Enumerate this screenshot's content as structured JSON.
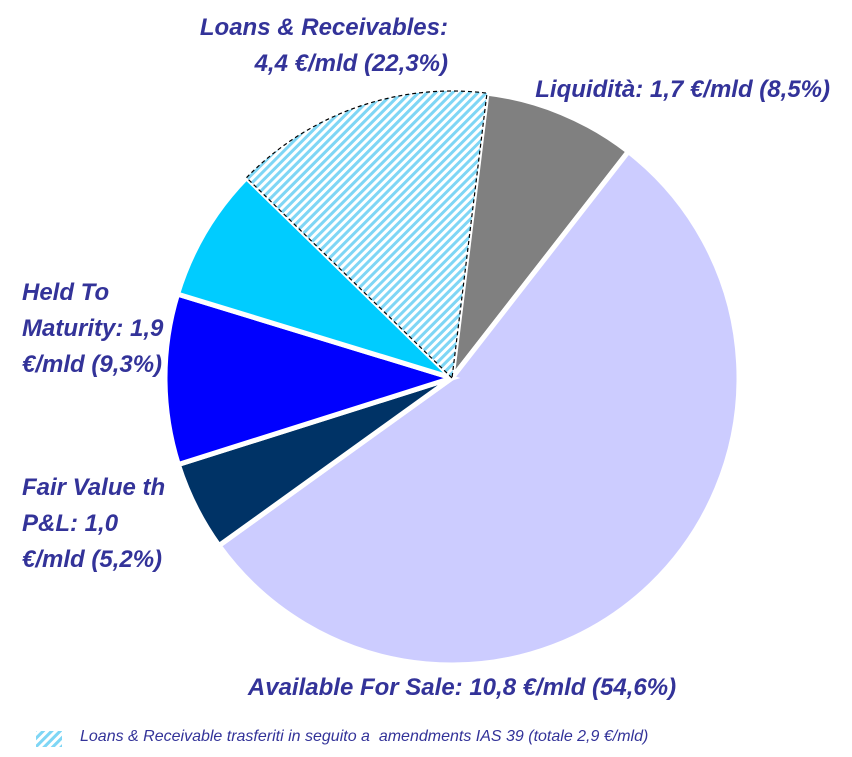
{
  "chart_data": {
    "type": "pie",
    "categories": [
      "Liquidità:",
      "Available For Sale:",
      "Fair Value th P&L:",
      "Held To Maturity:",
      "Loans & Receivables:"
    ],
    "values": [
      1.7,
      10.8,
      1.0,
      1.9,
      4.4
    ],
    "value_labels": [
      "1,7 €/mld (8,5%)",
      "10,8 €/mld (54,6%)",
      "1,0 €/mld (5,2%)",
      "1,9 €/mld (9,3%)",
      "4,4 €/mld (22,3%)"
    ],
    "colors": [
      "#808080",
      "#ccccff",
      "#003366",
      "#0000ff",
      "#00ccff"
    ],
    "transferred": {
      "value": 2.9,
      "label": "Loans & Receivable trasferiti in seguito a  amendments IAS 39 (totale 2,9 €/mld)",
      "color": "#7fd6f5"
    }
  }
}
